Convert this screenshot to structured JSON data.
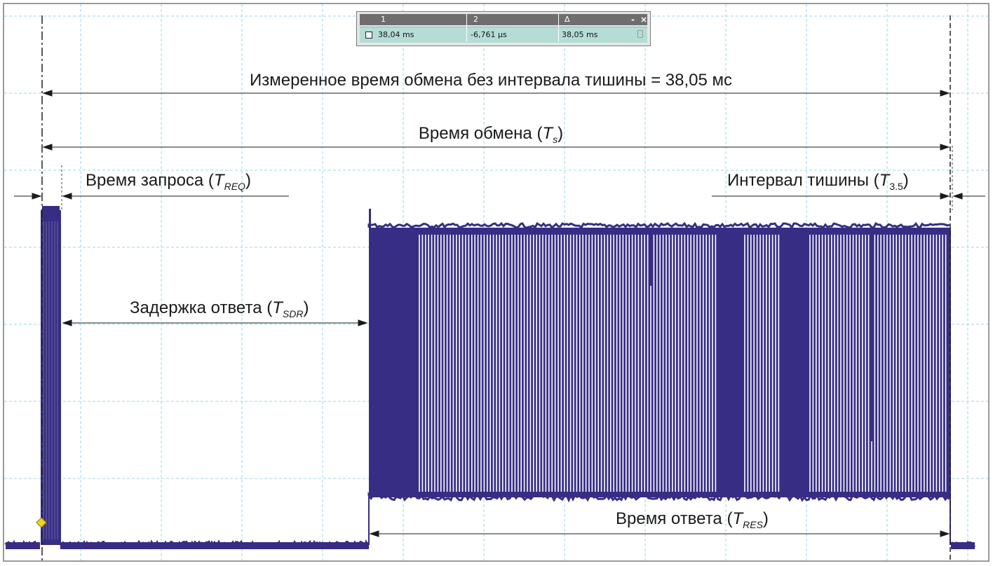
{
  "cursor_readout": {
    "headers": [
      "1",
      "2",
      "Δ"
    ],
    "values": [
      "38,04 ms",
      "-6,761 µs",
      "38,05 ms"
    ],
    "minimize_glyph": "-",
    "close_glyph": "×"
  },
  "annotations": {
    "measured_time": {
      "text": "Измеренное время обмена без интервала тишины = 38,05 мс"
    },
    "exchange_time": {
      "text": "Время обмена (",
      "symbol": "T",
      "subscript": "s",
      "close": ")"
    },
    "request_time": {
      "text": "Время запроса (",
      "symbol": "T",
      "subscript": "REQ",
      "close": ")"
    },
    "silence_interval": {
      "text": "Интервал тишины (",
      "symbol": "T",
      "subscript": "3.5",
      "close": ")"
    },
    "response_delay": {
      "text": "Задержка ответа (",
      "symbol": "T",
      "subscript": "SDR",
      "close": ")"
    },
    "response_time": {
      "text": "Время ответа (",
      "symbol": "T",
      "subscript": "RES",
      "close": ")"
    }
  },
  "colors": {
    "signal": "#372d84",
    "grid": "#9ed6ea",
    "arrows": "#1a1a1a",
    "trigger_marker": "#f2d21b",
    "readout_row": "#b4ddd6"
  }
}
